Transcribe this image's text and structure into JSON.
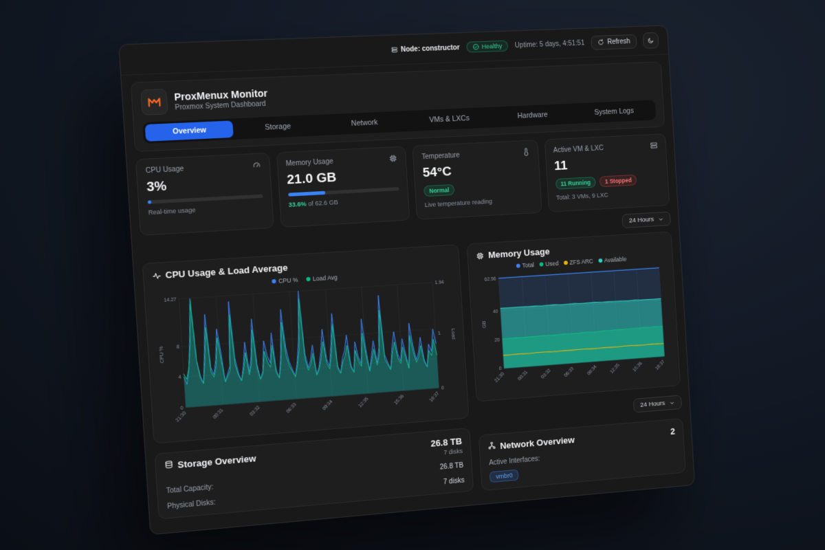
{
  "page": {
    "title": "ProxMenux Monitor",
    "subtitle": "Proxmox System Dashboard"
  },
  "topbar": {
    "node_label": "Node: constructor",
    "health_badge": "Healthy",
    "uptime": "Uptime: 5 days, 4:51:51",
    "refresh_label": "Refresh"
  },
  "tabs": [
    {
      "label": "Overview",
      "active": true
    },
    {
      "label": "Storage",
      "active": false
    },
    {
      "label": "Network",
      "active": false
    },
    {
      "label": "VMs & LXCs",
      "active": false
    },
    {
      "label": "Hardware",
      "active": false
    },
    {
      "label": "System Logs",
      "active": false
    }
  ],
  "metric_cards": {
    "cpu": {
      "title": "CPU Usage",
      "value": "3%",
      "percent": 3,
      "footnote": "Real-time usage"
    },
    "memory": {
      "title": "Memory Usage",
      "value": "21.0 GB",
      "percent": 33.6,
      "highlight": "33.6%",
      "footnote": "of 62.6 GB"
    },
    "temperature": {
      "title": "Temperature",
      "value": "54°C",
      "badge": "Normal",
      "footnote": "Live temperature reading"
    },
    "vms": {
      "title": "Active VM & LXC",
      "value": "11",
      "running": "11 Running",
      "stopped": "1 Stopped",
      "footnote": "Total: 3 VMs, 9 LXC"
    }
  },
  "time_range": {
    "label": "24 Hours"
  },
  "chart_data": [
    {
      "type": "line",
      "title": "CPU Usage & Load Average",
      "ylabel_left": "CPU %",
      "ylabel_right": "Load",
      "ylim_left": [
        0,
        14.27
      ],
      "ylim_right": [
        0,
        1.94
      ],
      "y_left_ticks": [
        14.27,
        8,
        4,
        0
      ],
      "y_right_ticks": [
        1.94,
        1,
        0
      ],
      "x_labels": [
        "21:30",
        "00:31",
        "03:32",
        "06:33",
        "09:34",
        "12:35",
        "15:36",
        "18:37"
      ],
      "legend": [
        {
          "label": "CPU %",
          "color": "#3b82f6"
        },
        {
          "label": "Load Avg",
          "color": "#10b981"
        }
      ],
      "series": [
        {
          "name": "CPU %",
          "color": "#3b82f6",
          "axis": "left",
          "fill_opacity": 0.18,
          "values": [
            4,
            3,
            5,
            9,
            14.2,
            6,
            4,
            3,
            7,
            12,
            5,
            4,
            6,
            10,
            7,
            3,
            4,
            5,
            13.5,
            6,
            4,
            3,
            5,
            8,
            4,
            6,
            11,
            5,
            3,
            4,
            8,
            6,
            5,
            9,
            4,
            3,
            6,
            12,
            7,
            5,
            4,
            3,
            5,
            8,
            14.3,
            6,
            4,
            5,
            7,
            3,
            4,
            6,
            9,
            5,
            4,
            7,
            11,
            4,
            3,
            5,
            6,
            8,
            4,
            3,
            7,
            5,
            4,
            10,
            6,
            3,
            5,
            7,
            4,
            6,
            13,
            5,
            4,
            3,
            6,
            8,
            5,
            4,
            7,
            5,
            3,
            9,
            6,
            4,
            5,
            7,
            4,
            3,
            6,
            5,
            8,
            6
          ]
        },
        {
          "name": "Load Avg",
          "color": "#10b981",
          "axis": "right",
          "fill_opacity": 0.32,
          "values": [
            0.6,
            0.5,
            0.7,
            1.1,
            1.9,
            0.8,
            0.5,
            0.4,
            0.8,
            1.4,
            0.6,
            0.5,
            0.7,
            1.2,
            0.8,
            0.4,
            0.5,
            0.6,
            1.6,
            0.7,
            0.5,
            0.4,
            0.6,
            0.9,
            0.5,
            0.7,
            1.3,
            0.6,
            0.4,
            0.5,
            0.9,
            0.7,
            0.6,
            1.0,
            0.5,
            0.4,
            0.7,
            1.4,
            0.8,
            0.6,
            0.5,
            0.4,
            0.6,
            0.9,
            1.8,
            0.7,
            0.5,
            0.6,
            0.8,
            0.4,
            0.5,
            0.7,
            1.0,
            0.6,
            0.5,
            0.8,
            1.3,
            0.5,
            0.4,
            0.6,
            0.7,
            0.9,
            0.5,
            0.4,
            0.8,
            0.6,
            0.5,
            1.1,
            0.7,
            0.4,
            0.6,
            0.8,
            0.5,
            0.7,
            1.5,
            0.6,
            0.5,
            0.4,
            0.7,
            0.9,
            0.6,
            0.5,
            0.8,
            0.6,
            0.4,
            1.0,
            0.7,
            0.5,
            0.6,
            0.8,
            0.5,
            0.4,
            0.7,
            0.6,
            0.9,
            0.6
          ]
        }
      ]
    },
    {
      "type": "area",
      "title": "Memory Usage",
      "ylabel": "GB",
      "ylim": [
        0,
        62.56
      ],
      "y_ticks": [
        62.56,
        40,
        20,
        0
      ],
      "x_labels": [
        "21:30",
        "00:31",
        "03:32",
        "06:33",
        "09:34",
        "12:35",
        "15:36",
        "18:37"
      ],
      "legend": [
        {
          "label": "Total",
          "color": "#3b82f6"
        },
        {
          "label": "Used",
          "color": "#10b981"
        },
        {
          "label": "ZFS ARC",
          "color": "#eab308"
        },
        {
          "label": "Available",
          "color": "#2dd4bf"
        }
      ],
      "series": [
        {
          "name": "Total",
          "color": "#3b82f6",
          "axis": "left",
          "fill_opacity": 0.12,
          "values": [
            62.56,
            62.56
          ]
        },
        {
          "name": "Available",
          "color": "#2dd4bf",
          "axis": "left",
          "fill_opacity": 0.5,
          "values": [
            41.8,
            41.7,
            41.6,
            41.7,
            41.5,
            41.6,
            41.4,
            41.5,
            41.6,
            41.3,
            41.4,
            41.5,
            41.2,
            41.3,
            41.4,
            41.1,
            41.2,
            41.0,
            41.1,
            40.9,
            41.0,
            40.8,
            40.9,
            40.7,
            40.8
          ]
        },
        {
          "name": "Used",
          "color": "#10b981",
          "axis": "left",
          "fill_opacity": 0.45,
          "values": [
            20.3,
            20.4,
            20.5,
            20.4,
            20.6,
            20.5,
            20.7,
            20.6,
            20.5,
            20.8,
            20.7,
            20.6,
            20.9,
            20.8,
            20.7,
            21.0,
            20.9,
            21.1,
            21.0,
            21.2,
            21.1,
            21.3,
            21.2,
            21.4,
            21.0
          ]
        },
        {
          "name": "ZFS ARC",
          "color": "#eab308",
          "axis": "left",
          "fill_opacity": 0,
          "values": [
            9.1,
            9.0,
            9.2,
            9.1,
            9.0,
            9.2,
            9.3,
            9.1,
            9.0,
            9.2,
            9.1,
            9.3,
            9.2,
            9.1,
            9.0,
            9.2,
            9.1,
            9.0,
            9.3,
            9.2,
            9.1,
            9.0,
            9.2,
            9.1,
            9.0
          ]
        }
      ]
    }
  ],
  "storage": {
    "title": "Storage Overview",
    "stat_value": "26.8 TB",
    "stat_sub": "7 disks",
    "rows": [
      {
        "label": "Total Capacity:",
        "value": "26.8 TB"
      },
      {
        "label": "Physical Disks:",
        "value": "7 disks"
      }
    ]
  },
  "network": {
    "title": "Network Overview",
    "stat_value": "2",
    "row_label": "Active Interfaces:",
    "interfaces": [
      "vmbr0"
    ]
  },
  "colors": {
    "accent": "#2563eb",
    "healthy": "#34d399",
    "danger": "#f87171",
    "cpu_line": "#3b82f6",
    "load_line": "#10b981",
    "total": "#3b82f6",
    "used": "#10b981",
    "zfs_arc": "#eab308",
    "available": "#2dd4bf"
  }
}
